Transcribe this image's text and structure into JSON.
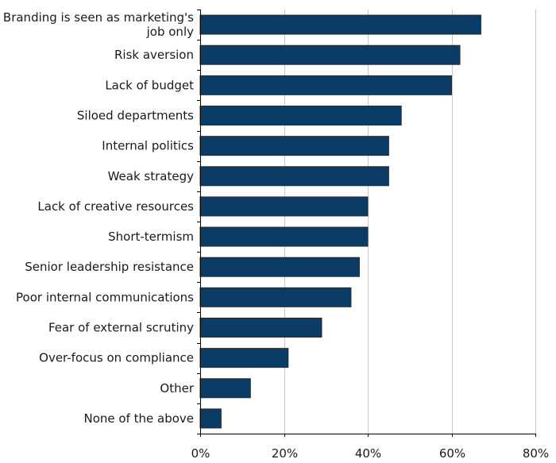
{
  "chart_data": {
    "type": "bar",
    "orientation": "horizontal",
    "categories": [
      [
        "Branding is seen as marketing's",
        "job only"
      ],
      [
        "Risk aversion"
      ],
      [
        "Lack of budget"
      ],
      [
        "Siloed departments"
      ],
      [
        "Internal politics"
      ],
      [
        "Weak strategy"
      ],
      [
        "Lack of creative resources"
      ],
      [
        "Short-termism"
      ],
      [
        "Senior leadership resistance"
      ],
      [
        "Poor internal communications"
      ],
      [
        "Fear of external scrutiny"
      ],
      [
        "Over-focus on compliance"
      ],
      [
        "Other"
      ],
      [
        "None of the above"
      ]
    ],
    "values": [
      67,
      62,
      60,
      48,
      45,
      45,
      40,
      40,
      38,
      36,
      29,
      21,
      12,
      5
    ],
    "xlim": [
      0,
      80
    ],
    "xticks": [
      0,
      20,
      40,
      60,
      80
    ],
    "tick_labels": [
      "0%",
      "20%",
      "40%",
      "60%",
      "80%"
    ],
    "grid": "vertical",
    "bar_color": "#0b3c66"
  }
}
